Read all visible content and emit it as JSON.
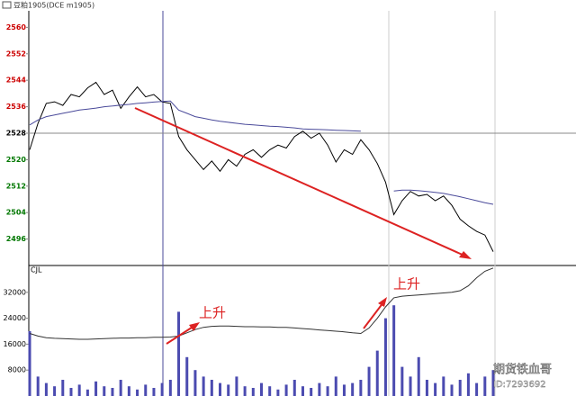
{
  "title": "豆粕1905(DCE m1905)",
  "annotations": [
    "上升",
    "上升"
  ],
  "watermark": [
    "期货铁血哥",
    "ID:7293692"
  ],
  "chart_data": [
    {
      "type": "line",
      "up_color": "#cc0000",
      "down_color": "#007700",
      "base_color": "#000000",
      "base": 2528,
      "ylim": [
        2488,
        2565
      ],
      "yticks": [
        2496,
        2504,
        2512,
        2520,
        2528,
        2536,
        2544,
        2552,
        2560
      ],
      "categories": [
        null,
        null,
        null,
        null,
        null,
        null,
        null,
        null,
        null,
        null,
        null,
        null,
        null,
        null,
        null,
        null,
        null,
        null,
        null,
        null,
        null,
        null,
        null,
        null,
        null,
        null,
        null,
        null,
        null,
        null,
        null,
        null,
        null,
        null,
        null,
        null,
        null,
        null,
        null,
        null,
        null,
        null,
        null,
        null,
        null,
        null,
        null,
        null,
        null,
        null,
        null,
        null,
        null,
        null,
        null,
        null,
        null
      ],
      "series": [
        {
          "color": "#000000",
          "values": [
            2523,
            2531,
            2537,
            2537.5,
            2536.4,
            2539.7,
            2539,
            2541.7,
            2543.4,
            2539.7,
            2541,
            2535.5,
            2539,
            2542,
            2539,
            2539.7,
            2537.5,
            2537,
            2527,
            2523,
            2520,
            2517,
            2519.6,
            2516.5,
            2520,
            2518,
            2521.6,
            2523,
            2520.7,
            2523,
            2524.4,
            2523.5,
            2527,
            2528.6,
            2526.5,
            2528,
            2524.4,
            2519.3,
            2523,
            2521.6,
            2526,
            2523,
            2518.8,
            2513.2,
            2503.4,
            2507.6,
            2510.4,
            2509,
            2509.5,
            2507.6,
            2509,
            2506.2,
            2502,
            2500,
            2498.3,
            2497.2,
            2492.2
          ]
        },
        {
          "color": "#4a4a9a",
          "values": [
            2530.5,
            2532,
            2533,
            2533.5,
            2534,
            2534.5,
            2535,
            2535.3,
            2535.6,
            2536,
            2536.2,
            2536.5,
            2536.7,
            2537,
            2537.2,
            2537.4,
            2537.6,
            2537.7,
            2535,
            2534,
            2533,
            2532.5,
            2532,
            2531.6,
            2531.3,
            2531,
            2530.7,
            2530.5,
            2530.3,
            2530.1,
            2530,
            2529.8,
            2529.6,
            2529.3,
            2529.2,
            2529.1,
            2529,
            2528.9,
            2528.8,
            2528.7,
            2528.6,
            null,
            null,
            null,
            2510.5,
            2510.8,
            2510.8,
            2510.6,
            2510.4,
            2510.1,
            2509.8,
            2509.3,
            2508.8,
            2508.2,
            2507.6,
            2507,
            2506.5
          ]
        }
      ]
    },
    {
      "type": "combo",
      "label": "CJL",
      "ylim": [
        0,
        40000
      ],
      "yticks": [
        8000,
        16000,
        24000,
        32000
      ],
      "series": [
        {
          "kind": "bar",
          "color": "#4b4bb0",
          "values": [
            20000,
            6000,
            4000,
            3000,
            5000,
            2500,
            3500,
            2000,
            4500,
            3000,
            2500,
            5000,
            3000,
            2000,
            3500,
            2500,
            4000,
            5000,
            26000,
            12000,
            8000,
            6000,
            5000,
            4000,
            3500,
            6000,
            3000,
            2500,
            4000,
            3000,
            2000,
            3500,
            5000,
            3000,
            2500,
            4000,
            3000,
            6000,
            3500,
            4000,
            5000,
            9000,
            14000,
            24000,
            28000,
            9000,
            6000,
            12000,
            5000,
            4000,
            6000,
            3500,
            5000,
            7000,
            4000,
            6000,
            8000
          ]
        },
        {
          "kind": "line",
          "color": "#333333",
          "values": [
            19300,
            18500,
            18000,
            17800,
            17700,
            17600,
            17500,
            17500,
            17600,
            17700,
            17800,
            17900,
            17900,
            18000,
            18000,
            18100,
            18100,
            18200,
            18500,
            19500,
            20500,
            21200,
            21500,
            21600,
            21600,
            21500,
            21400,
            21400,
            21300,
            21300,
            21200,
            21200,
            21000,
            20800,
            20600,
            20400,
            20200,
            20000,
            19800,
            19500,
            19300,
            21000,
            24000,
            27500,
            30300,
            30800,
            31000,
            31200,
            31400,
            31600,
            31800,
            32000,
            32500,
            34000,
            36500,
            38500,
            39500
          ]
        }
      ]
    }
  ]
}
